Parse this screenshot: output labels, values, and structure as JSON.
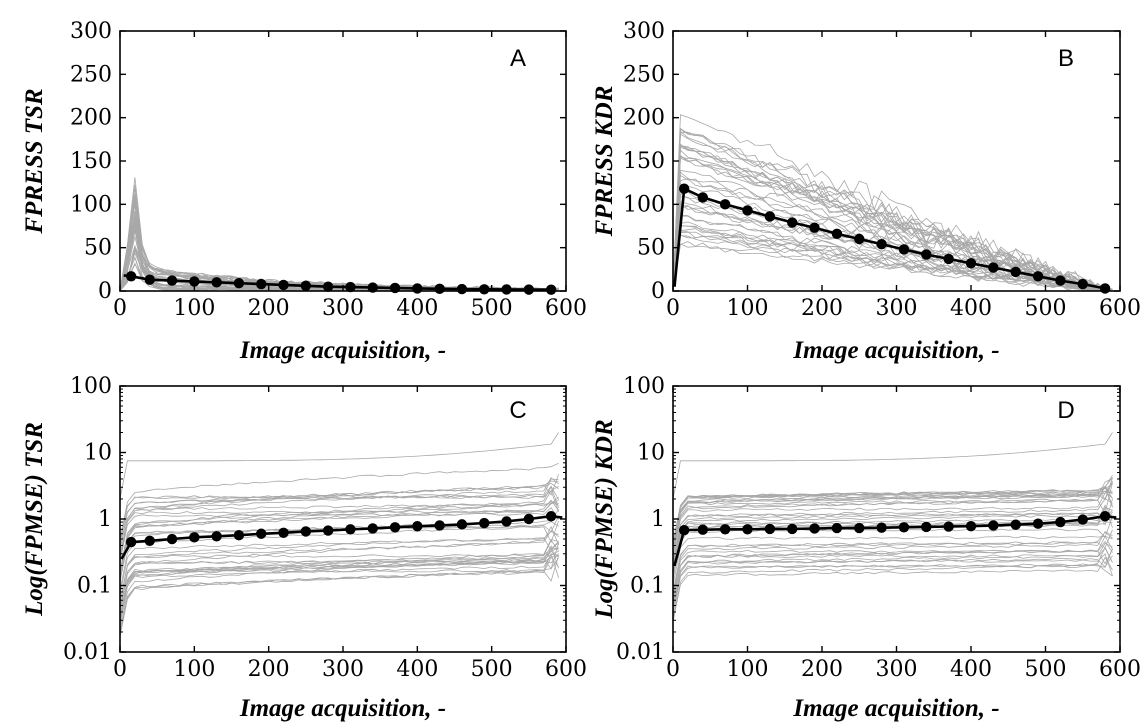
{
  "chart_data": [
    {
      "panel": "A",
      "type": "line",
      "xlabel": "Image acquisition, -",
      "ylabel": "FPRESS TSR",
      "xlim": [
        0,
        600
      ],
      "ylim": [
        0,
        300
      ],
      "xticks": [
        "0",
        "100",
        "200",
        "300",
        "400",
        "500",
        "600"
      ],
      "yticks": [
        "0",
        "50",
        "100",
        "150",
        "200",
        "250",
        "300"
      ],
      "log_y": false,
      "grid": false,
      "mean_series": {
        "x": [
          5,
          15,
          40,
          70,
          100,
          130,
          160,
          190,
          220,
          250,
          280,
          310,
          340,
          370,
          400,
          430,
          460,
          490,
          520,
          550,
          580
        ],
        "y": [
          18,
          17,
          13,
          12,
          11,
          10,
          9,
          8,
          7,
          6,
          5,
          4.5,
          4,
          3.5,
          3,
          2.5,
          2.2,
          2,
          1.8,
          1.6,
          1.5
        ]
      },
      "individual_series_band": {
        "y_peak_range": [
          20,
          110
        ],
        "y_tail_range": [
          0,
          30
        ]
      }
    },
    {
      "panel": "B",
      "type": "line",
      "xlabel": "Image acquisition, -",
      "ylabel": "FPRESS KDR",
      "xlim": [
        0,
        600
      ],
      "ylim": [
        0,
        300
      ],
      "xticks": [
        "0",
        "100",
        "200",
        "300",
        "400",
        "500",
        "600"
      ],
      "yticks": [
        "0",
        "50",
        "100",
        "150",
        "200",
        "250",
        "300"
      ],
      "log_y": false,
      "grid": false,
      "mean_series": {
        "x": [
          2,
          15,
          40,
          70,
          100,
          130,
          160,
          190,
          220,
          250,
          280,
          310,
          340,
          370,
          400,
          430,
          460,
          490,
          520,
          550,
          580
        ],
        "y": [
          5,
          118,
          108,
          100,
          93,
          86,
          79,
          73,
          66,
          60,
          54,
          48,
          42,
          37,
          32,
          27,
          22,
          17,
          12,
          8,
          3
        ]
      },
      "individual_series_band": {
        "y_start_range": [
          40,
          250
        ],
        "y_end": 0
      }
    },
    {
      "panel": "C",
      "type": "line",
      "xlabel": "Image acquisition, -",
      "ylabel": "Log(FPMSE) TSR",
      "xlim": [
        0,
        600
      ],
      "ylim": [
        0.01,
        100
      ],
      "xticks": [
        "0",
        "100",
        "200",
        "300",
        "400",
        "500",
        "600"
      ],
      "yticks": [
        "0.01",
        "0.1",
        "1",
        "10",
        "100"
      ],
      "log_y": true,
      "grid": false,
      "mean_series": {
        "x": [
          2,
          15,
          40,
          70,
          100,
          130,
          160,
          190,
          220,
          250,
          280,
          310,
          340,
          370,
          400,
          430,
          460,
          490,
          520,
          550,
          580,
          595
        ],
        "y": [
          0.25,
          0.45,
          0.47,
          0.5,
          0.53,
          0.55,
          0.57,
          0.6,
          0.62,
          0.65,
          0.67,
          0.7,
          0.72,
          0.75,
          0.78,
          0.8,
          0.83,
          0.87,
          0.92,
          1.0,
          1.1,
          1.05
        ]
      },
      "individual_series_band": {
        "y_range": [
          0.07,
          20
        ]
      }
    },
    {
      "panel": "D",
      "type": "line",
      "xlabel": "Image acquisition, -",
      "ylabel": "Log(FPMSE) KDR",
      "xlim": [
        0,
        600
      ],
      "ylim": [
        0.01,
        100
      ],
      "xticks": [
        "0",
        "100",
        "200",
        "300",
        "400",
        "500",
        "600"
      ],
      "yticks": [
        "0.01",
        "0.1",
        "1",
        "10",
        "100"
      ],
      "log_y": true,
      "grid": false,
      "mean_series": {
        "x": [
          2,
          15,
          40,
          70,
          100,
          130,
          160,
          190,
          220,
          250,
          280,
          310,
          340,
          370,
          400,
          430,
          460,
          490,
          520,
          550,
          580,
          595
        ],
        "y": [
          0.2,
          0.68,
          0.69,
          0.7,
          0.7,
          0.71,
          0.71,
          0.72,
          0.73,
          0.73,
          0.74,
          0.75,
          0.76,
          0.77,
          0.78,
          0.8,
          0.82,
          0.85,
          0.9,
          0.98,
          1.1,
          1.05
        ]
      },
      "individual_series_band": {
        "y_range": [
          0.15,
          20
        ]
      }
    }
  ]
}
